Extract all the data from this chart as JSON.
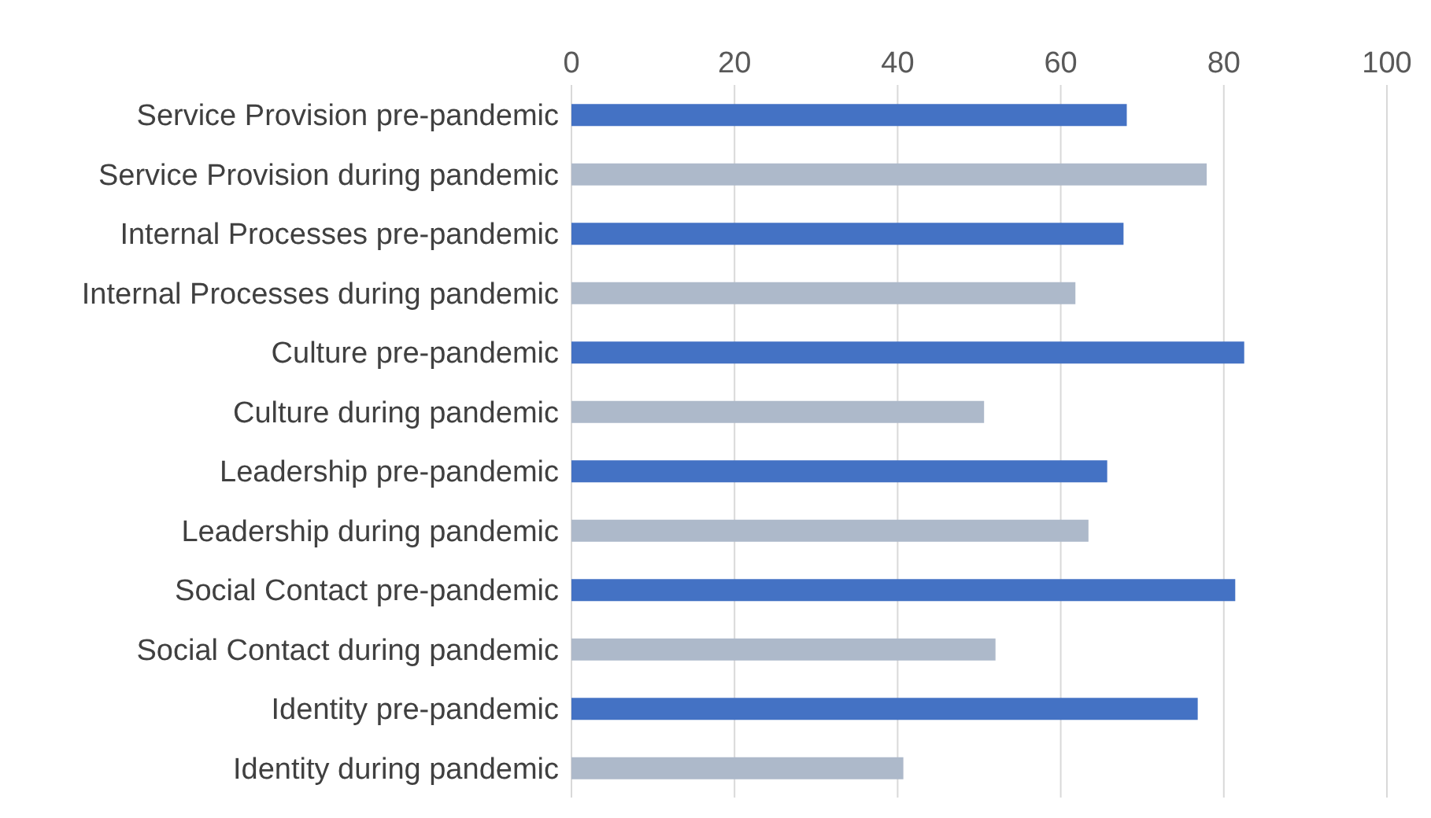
{
  "chart_data": {
    "type": "bar",
    "orientation": "horizontal",
    "categories": [
      "Service Provision pre-pandemic",
      "Service Provision during pandemic",
      "Internal Processes pre-pandemic",
      "Internal Processes during pandemic",
      "Culture pre-pandemic",
      "Culture during pandemic",
      "Leadership pre-pandemic",
      "Leadership during pandemic",
      "Social Contact pre-pandemic",
      "Social Contact during pandemic",
      "Identity pre-pandemic",
      "Identity during pandemic"
    ],
    "values": [
      68.1,
      77.9,
      67.7,
      61.8,
      82.5,
      50.6,
      65.7,
      63.4,
      81.4,
      52.0,
      76.8,
      40.7
    ],
    "colors": [
      "#4472c4",
      "#adb9ca",
      "#4472c4",
      "#adb9ca",
      "#4472c4",
      "#adb9ca",
      "#4472c4",
      "#adb9ca",
      "#4472c4",
      "#adb9ca",
      "#4472c4",
      "#adb9ca"
    ],
    "xlim": [
      0,
      100
    ],
    "xticks": [
      0,
      20,
      40,
      60,
      80,
      100
    ],
    "grid": "x"
  }
}
